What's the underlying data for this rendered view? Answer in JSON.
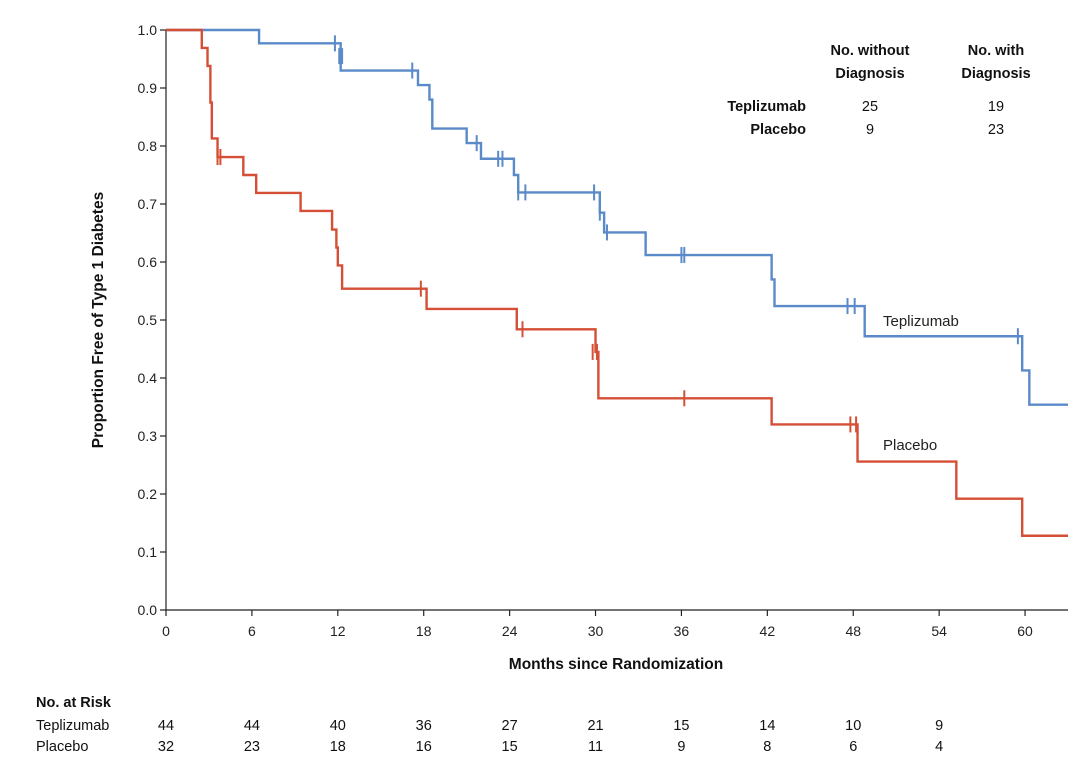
{
  "chart_data": {
    "type": "line",
    "step": true,
    "xlabel": "Months since Randomization",
    "ylabel": "Proportion Free of Type 1 Diabetes",
    "xlim": [
      0,
      63
    ],
    "ylim": [
      0,
      1
    ],
    "x_ticks": [
      "0",
      "6",
      "12",
      "18",
      "24",
      "30",
      "36",
      "42",
      "48",
      "54",
      "60"
    ],
    "y_ticks": [
      "0.0",
      "0.1",
      "0.2",
      "0.3",
      "0.4",
      "0.5",
      "0.6",
      "0.7",
      "0.8",
      "0.9",
      "1.0"
    ],
    "grid": false,
    "series": [
      {
        "name": "Teplizumab",
        "color": "#5b8ac8",
        "x": [
          0,
          6.5,
          12.2,
          17.6,
          18.4,
          18.6,
          21.0,
          22.0,
          24.3,
          24.6,
          30.3,
          30.6,
          33.5,
          42.3,
          42.5,
          48.8,
          59.8,
          60.3,
          63
        ],
        "y": [
          1.0,
          0.977,
          0.93,
          0.905,
          0.88,
          0.83,
          0.805,
          0.778,
          0.75,
          0.72,
          0.685,
          0.651,
          0.612,
          0.57,
          0.524,
          0.472,
          0.413,
          0.354,
          0.354
        ],
        "censored_x": [
          11.8,
          12.1,
          12.3,
          17.2,
          21.7,
          23.2,
          23.5,
          24.6,
          25.1,
          29.9,
          30.3,
          30.8,
          36.0,
          36.2,
          47.6,
          48.1,
          59.5
        ],
        "censored_y": [
          0.977,
          0.955,
          0.955,
          0.93,
          0.805,
          0.778,
          0.778,
          0.72,
          0.72,
          0.72,
          0.685,
          0.651,
          0.612,
          0.612,
          0.524,
          0.524,
          0.472
        ]
      },
      {
        "name": "Placebo",
        "color": "#d44f35",
        "x": [
          0,
          2.5,
          2.9,
          3.1,
          3.2,
          3.3,
          3.6,
          5.4,
          6.3,
          9.4,
          11.6,
          11.9,
          12.0,
          12.3,
          18.2,
          24.5,
          30.0,
          30.2,
          42.3,
          48.3,
          55.2,
          59.8,
          63
        ],
        "y": [
          1.0,
          0.969,
          0.938,
          0.875,
          0.813,
          0.813,
          0.781,
          0.75,
          0.719,
          0.688,
          0.656,
          0.625,
          0.594,
          0.554,
          0.519,
          0.484,
          0.445,
          0.365,
          0.32,
          0.256,
          0.192,
          0.128,
          0.128
        ],
        "censored_x": [
          3.6,
          3.8,
          17.8,
          24.9,
          29.8,
          30.1,
          36.2,
          47.8,
          48.2
        ],
        "censored_y": [
          0.781,
          0.781,
          0.554,
          0.484,
          0.445,
          0.445,
          0.365,
          0.32,
          0.32
        ]
      }
    ],
    "summary_table": {
      "col1_line1": "No. without",
      "col1_line2": "Diagnosis",
      "col2_line1": "No. with",
      "col2_line2": "Diagnosis",
      "rows": [
        {
          "name": "Teplizumab",
          "without": "25",
          "with": "19"
        },
        {
          "name": "Placebo",
          "without": "9",
          "with": "23"
        }
      ]
    },
    "at_risk": {
      "title": "No. at Risk",
      "rows": [
        {
          "name": "Teplizumab",
          "values": [
            "44",
            "44",
            "40",
            "36",
            "27",
            "21",
            "15",
            "14",
            "10",
            "9"
          ]
        },
        {
          "name": "Placebo",
          "values": [
            "32",
            "23",
            "18",
            "16",
            "15",
            "11",
            "9",
            "8",
            "6",
            "4"
          ]
        }
      ]
    }
  }
}
